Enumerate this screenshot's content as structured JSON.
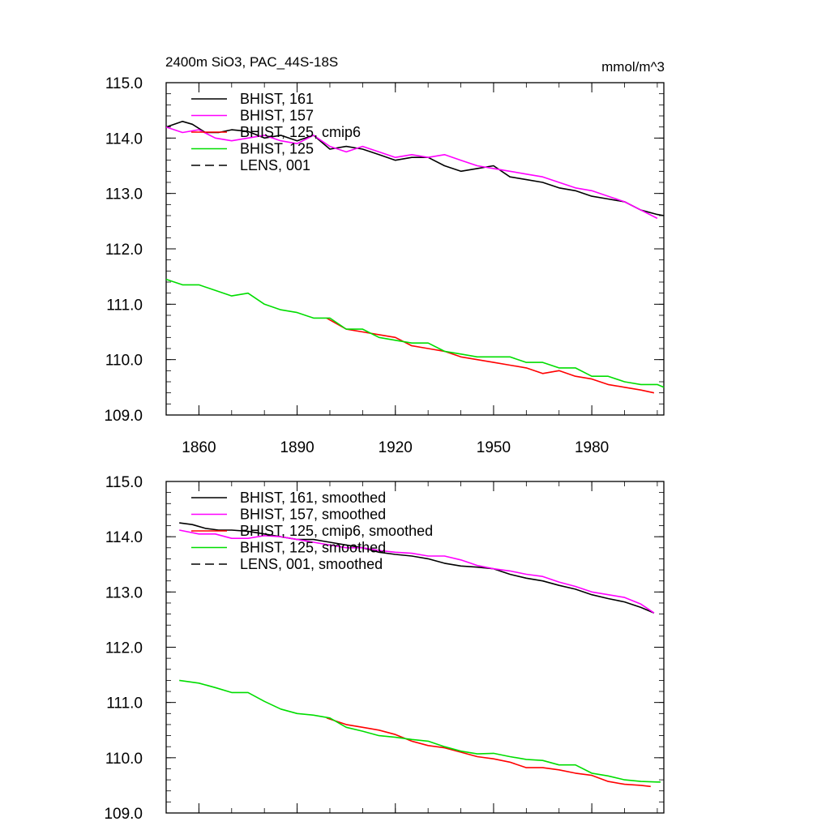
{
  "chart_data": [
    {
      "type": "line",
      "title": "2400m SiO3, PAC_44S-18S",
      "units": "mmol/m^3",
      "xlim": [
        1850,
        2002
      ],
      "ylim": [
        109.0,
        115.0
      ],
      "y_ticks": [
        "109.0",
        "110.0",
        "111.0",
        "112.0",
        "113.0",
        "114.0",
        "115.0"
      ],
      "x_ticks": [
        "1860",
        "1890",
        "1920",
        "1950",
        "1980"
      ],
      "legend_position": "top-left",
      "legend": [
        "BHIST, 161",
        "BHIST, 157",
        "BHIST, 125, cmip6",
        "BHIST, 125",
        "LENS, 001"
      ],
      "series": [
        {
          "name": "BHIST, 161",
          "color": "#000000",
          "dash": "solid",
          "x": [
            1850,
            1855,
            1858,
            1862,
            1866,
            1870,
            1875,
            1880,
            1885,
            1890,
            1895,
            1900,
            1905,
            1910,
            1915,
            1920,
            1925,
            1930,
            1935,
            1940,
            1945,
            1950,
            1955,
            1960,
            1965,
            1970,
            1975,
            1980,
            1985,
            1990,
            1995,
            2000,
            2002
          ],
          "y": [
            114.2,
            114.3,
            114.25,
            114.1,
            114.1,
            114.15,
            114.12,
            114.0,
            114.05,
            113.95,
            114.05,
            113.8,
            113.85,
            113.8,
            113.7,
            113.6,
            113.65,
            113.65,
            113.5,
            113.4,
            113.45,
            113.5,
            113.3,
            113.25,
            113.2,
            113.1,
            113.05,
            112.95,
            112.9,
            112.85,
            112.7,
            112.62,
            112.6
          ]
        },
        {
          "name": "BHIST, 157",
          "color": "#ff00ff",
          "dash": "solid",
          "x": [
            1850,
            1855,
            1860,
            1865,
            1870,
            1875,
            1880,
            1885,
            1890,
            1895,
            1900,
            1905,
            1910,
            1915,
            1920,
            1925,
            1930,
            1935,
            1940,
            1945,
            1950,
            1955,
            1960,
            1965,
            1970,
            1975,
            1980,
            1985,
            1990,
            1995,
            2000
          ],
          "y": [
            114.2,
            114.1,
            114.15,
            114.0,
            113.95,
            114.0,
            114.05,
            113.95,
            113.9,
            114.05,
            113.85,
            113.75,
            113.85,
            113.75,
            113.65,
            113.7,
            113.65,
            113.7,
            113.6,
            113.5,
            113.45,
            113.4,
            113.35,
            113.3,
            113.2,
            113.1,
            113.05,
            112.95,
            112.85,
            112.7,
            112.55
          ]
        },
        {
          "name": "BHIST, 125, cmip6",
          "color": "#ff0000",
          "dash": "solid",
          "x": [
            1899,
            1905,
            1910,
            1915,
            1920,
            1925,
            1930,
            1935,
            1940,
            1945,
            1950,
            1955,
            1960,
            1965,
            1970,
            1975,
            1980,
            1985,
            1990,
            1995,
            1999
          ],
          "y": [
            110.75,
            110.55,
            110.5,
            110.45,
            110.4,
            110.25,
            110.2,
            110.15,
            110.05,
            110.0,
            109.95,
            109.9,
            109.85,
            109.75,
            109.8,
            109.7,
            109.65,
            109.55,
            109.5,
            109.45,
            109.4
          ]
        },
        {
          "name": "BHIST, 125",
          "color": "#00dd00",
          "dash": "solid",
          "x": [
            1850,
            1855,
            1860,
            1865,
            1870,
            1875,
            1880,
            1885,
            1890,
            1895,
            1900,
            1905,
            1910,
            1915,
            1920,
            1925,
            1930,
            1935,
            1940,
            1945,
            1950,
            1955,
            1960,
            1965,
            1970,
            1975,
            1980,
            1985,
            1990,
            1995,
            2000,
            2002
          ],
          "y": [
            111.45,
            111.35,
            111.35,
            111.25,
            111.15,
            111.2,
            111.0,
            110.9,
            110.85,
            110.75,
            110.75,
            110.55,
            110.55,
            110.4,
            110.35,
            110.3,
            110.3,
            110.15,
            110.1,
            110.05,
            110.05,
            110.05,
            109.95,
            109.95,
            109.85,
            109.85,
            109.7,
            109.7,
            109.6,
            109.55,
            109.55,
            109.5
          ]
        },
        {
          "name": "LENS, 001",
          "color": "#000000",
          "dash": "dashed",
          "x": [],
          "y": []
        }
      ]
    },
    {
      "type": "line",
      "title": "",
      "xlim": [
        1850,
        2002
      ],
      "ylim": [
        109.0,
        115.0
      ],
      "y_ticks": [
        "109.0",
        "110.0",
        "111.0",
        "112.0",
        "113.0",
        "114.0",
        "115.0"
      ],
      "x_ticks": [],
      "legend_position": "top-left",
      "legend": [
        "BHIST, 161, smoothed",
        "BHIST, 157, smoothed",
        "BHIST, 125, cmip6, smoothed",
        "BHIST, 125, smoothed",
        "LENS, 001, smoothed"
      ],
      "series": [
        {
          "name": "BHIST, 161, smoothed",
          "color": "#000000",
          "dash": "solid",
          "x": [
            1854,
            1858,
            1862,
            1866,
            1870,
            1875,
            1880,
            1885,
            1890,
            1895,
            1900,
            1905,
            1910,
            1915,
            1920,
            1925,
            1930,
            1935,
            1940,
            1945,
            1950,
            1955,
            1960,
            1965,
            1970,
            1975,
            1980,
            1985,
            1990,
            1995,
            1999
          ],
          "y": [
            114.25,
            114.22,
            114.15,
            114.12,
            114.12,
            114.1,
            114.05,
            114.0,
            113.95,
            113.95,
            113.9,
            113.85,
            113.8,
            113.72,
            113.68,
            113.65,
            113.6,
            113.52,
            113.47,
            113.45,
            113.42,
            113.32,
            113.25,
            113.2,
            113.12,
            113.05,
            112.95,
            112.88,
            112.82,
            112.72,
            112.62
          ]
        },
        {
          "name": "BHIST, 157, smoothed",
          "color": "#ff00ff",
          "dash": "solid",
          "x": [
            1854,
            1860,
            1865,
            1870,
            1875,
            1880,
            1885,
            1890,
            1895,
            1900,
            1905,
            1910,
            1915,
            1920,
            1925,
            1930,
            1935,
            1940,
            1945,
            1950,
            1955,
            1960,
            1965,
            1970,
            1975,
            1980,
            1985,
            1990,
            1995,
            1999
          ],
          "y": [
            114.12,
            114.05,
            114.05,
            113.97,
            113.97,
            114.02,
            114.0,
            113.95,
            113.9,
            113.85,
            113.8,
            113.8,
            113.75,
            113.72,
            113.7,
            113.65,
            113.65,
            113.58,
            113.48,
            113.42,
            113.38,
            113.32,
            113.28,
            113.18,
            113.1,
            113.0,
            112.95,
            112.9,
            112.78,
            112.62
          ]
        },
        {
          "name": "BHIST, 125, cmip6, smoothed",
          "color": "#ff0000",
          "dash": "solid",
          "x": [
            1899,
            1905,
            1910,
            1915,
            1920,
            1925,
            1930,
            1935,
            1940,
            1945,
            1950,
            1955,
            1960,
            1965,
            1970,
            1975,
            1980,
            1985,
            1990,
            1995,
            1998
          ],
          "y": [
            110.72,
            110.6,
            110.55,
            110.5,
            110.42,
            110.3,
            110.22,
            110.18,
            110.1,
            110.02,
            109.98,
            109.92,
            109.82,
            109.82,
            109.78,
            109.72,
            109.68,
            109.57,
            109.52,
            109.5,
            109.48
          ]
        },
        {
          "name": "BHIST, 125, smoothed",
          "color": "#00dd00",
          "dash": "solid",
          "x": [
            1854,
            1860,
            1865,
            1870,
            1875,
            1880,
            1885,
            1890,
            1895,
            1900,
            1905,
            1910,
            1915,
            1920,
            1925,
            1930,
            1935,
            1940,
            1945,
            1950,
            1955,
            1960,
            1965,
            1970,
            1975,
            1980,
            1985,
            1990,
            1995,
            2000,
            2001
          ],
          "y": [
            111.4,
            111.35,
            111.27,
            111.18,
            111.18,
            111.02,
            110.88,
            110.8,
            110.77,
            110.72,
            110.55,
            110.48,
            110.4,
            110.37,
            110.33,
            110.3,
            110.2,
            110.12,
            110.07,
            110.08,
            110.02,
            109.97,
            109.95,
            109.87,
            109.87,
            109.72,
            109.67,
            109.6,
            109.57,
            109.56,
            109.56
          ]
        },
        {
          "name": "LENS, 001, smoothed",
          "color": "#000000",
          "dash": "dashed",
          "x": [],
          "y": []
        }
      ]
    }
  ]
}
